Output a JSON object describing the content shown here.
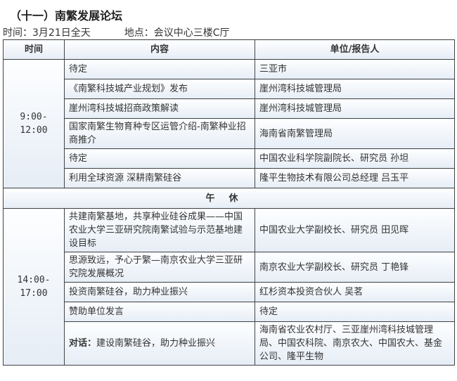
{
  "title": "（十一）南繁发展论坛",
  "time": "时间：3月21日全天",
  "place": "地点：会议中心三楼C厅",
  "headers": {
    "time": "时间",
    "content": "内容",
    "unit": "单位/报告人"
  },
  "morning": {
    "time": "9:00-12:00",
    "rows": [
      {
        "content": "待定",
        "unit": "三亚市"
      },
      {
        "content": "《南繁科技城产业规划》发布",
        "unit": "崖州湾科技城管理局"
      },
      {
        "content": "崖州湾科技城招商政策解读",
        "unit": "崖州湾科技城管理局"
      },
      {
        "content": "国家南繁生物育种专区运管介绍-南繁种业招商推介",
        "unit": "海南省南繁管理局"
      },
      {
        "content": "待定",
        "unit": "中国农业科学院副院长、研究员 孙坦"
      },
      {
        "content": "利用全球资源 深耕南繁硅谷",
        "unit": "隆平生物技术有限公司总经理 吕玉平"
      }
    ]
  },
  "noon": "午休",
  "afternoon": {
    "time": "14:00-17:00",
    "rows": [
      {
        "content": "共建南繁基地，共享种业硅谷成果——中国农业大学三亚研究院南繁试验与示范基地建设目标",
        "unit": "中国农业大学副校长、研究员 田见晖"
      },
      {
        "content": "思源致远，予心于繁—南京农业大学三亚研究院发展概况",
        "unit": "南京农业大学副校长、研究员 丁艳锋"
      },
      {
        "content": "投资南繁硅谷，助力种业振兴",
        "unit": "红杉资本投资合伙人 吴茗"
      },
      {
        "content": "赞助单位发言",
        "unit": "待定"
      },
      {
        "label": "对话：",
        "content": "建设南繁硅谷，助力种业振兴",
        "unit": "海南省农业农村厅、三亚崖州湾科技城管理局、中国农科院、南京农大、中国农大、基金公司、隆平生物"
      }
    ]
  }
}
